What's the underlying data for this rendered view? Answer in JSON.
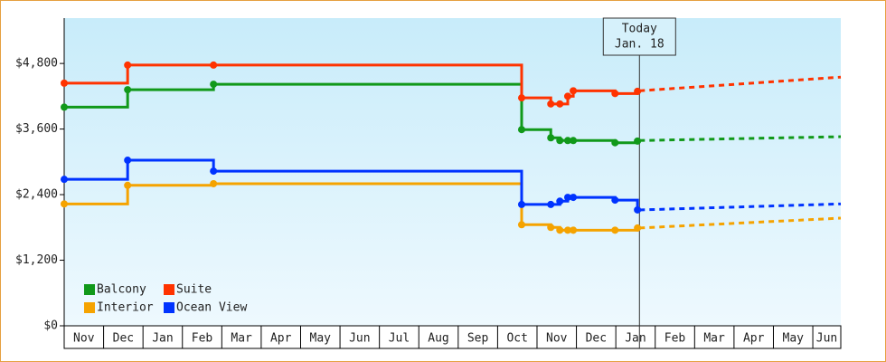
{
  "chart_data": {
    "type": "step-line",
    "xlim": [
      0,
      19.71
    ],
    "ylim": [
      0,
      5630
    ],
    "yticks": [
      {
        "value": 0,
        "label": "$0"
      },
      {
        "value": 1200,
        "label": "$1,200"
      },
      {
        "value": 2400,
        "label": "$2,400"
      },
      {
        "value": 3600,
        "label": "$3,600"
      },
      {
        "value": 4800,
        "label": "$4,800"
      }
    ],
    "xticks": [
      {
        "value": 0,
        "label": "Nov"
      },
      {
        "value": 1,
        "label": "Dec"
      },
      {
        "value": 2,
        "label": "Jan"
      },
      {
        "value": 3,
        "label": "Feb"
      },
      {
        "value": 4,
        "label": "Mar"
      },
      {
        "value": 5,
        "label": "Apr"
      },
      {
        "value": 6,
        "label": "May"
      },
      {
        "value": 7,
        "label": "Jun"
      },
      {
        "value": 8,
        "label": "Jul"
      },
      {
        "value": 9,
        "label": "Aug"
      },
      {
        "value": 10,
        "label": "Sep"
      },
      {
        "value": 11,
        "label": "Oct"
      },
      {
        "value": 12,
        "label": "Nov"
      },
      {
        "value": 13,
        "label": "Dec"
      },
      {
        "value": 14,
        "label": "Jan"
      },
      {
        "value": 15,
        "label": "Feb"
      },
      {
        "value": 16,
        "label": "Mar"
      },
      {
        "value": 17,
        "label": "Apr"
      },
      {
        "value": 18,
        "label": "May"
      },
      {
        "value": 19,
        "label": "Jun"
      }
    ],
    "today": {
      "x": 14.6,
      "label": [
        "Today",
        "Jan. 18"
      ]
    },
    "series": [
      {
        "name": "Balcony",
        "color": "#11991a",
        "x": [
          0,
          1.61,
          3.79,
          11.61,
          12.35,
          12.58,
          12.78,
          12.92,
          13.98,
          14.55
        ],
        "values": [
          4000,
          4320,
          4420,
          3590,
          3440,
          3390,
          3390,
          3390,
          3350,
          3380
        ],
        "forecast": {
          "x": [
            14.6,
            19.71
          ],
          "values": [
            3390,
            3460
          ]
        }
      },
      {
        "name": "Suite",
        "color": "#ff3300",
        "x": [
          0,
          1.61,
          3.79,
          11.61,
          12.35,
          12.58,
          12.78,
          12.92,
          13.98,
          14.55
        ],
        "values": [
          4440,
          4770,
          4770,
          4170,
          4060,
          4060,
          4200,
          4300,
          4250,
          4290
        ],
        "forecast": {
          "x": [
            14.6,
            19.71
          ],
          "values": [
            4300,
            4550
          ]
        }
      },
      {
        "name": "Interior",
        "color": "#f5a300",
        "x": [
          0,
          1.61,
          3.79,
          11.61,
          12.35,
          12.58,
          12.78,
          12.92,
          13.98,
          14.55
        ],
        "values": [
          2230,
          2570,
          2600,
          1850,
          1800,
          1750,
          1750,
          1750,
          1750,
          1790
        ],
        "forecast": {
          "x": [
            14.6,
            19.71
          ],
          "values": [
            1790,
            1970
          ]
        }
      },
      {
        "name": "Ocean View",
        "color": "#0033ff",
        "x": [
          0,
          1.61,
          3.79,
          11.61,
          12.35,
          12.58,
          12.78,
          12.92,
          13.98,
          14.55
        ],
        "values": [
          2680,
          3030,
          2830,
          2220,
          2220,
          2280,
          2350,
          2350,
          2300,
          2120
        ],
        "forecast": {
          "x": [
            14.6,
            19.71
          ],
          "values": [
            2120,
            2230
          ]
        }
      }
    ]
  }
}
